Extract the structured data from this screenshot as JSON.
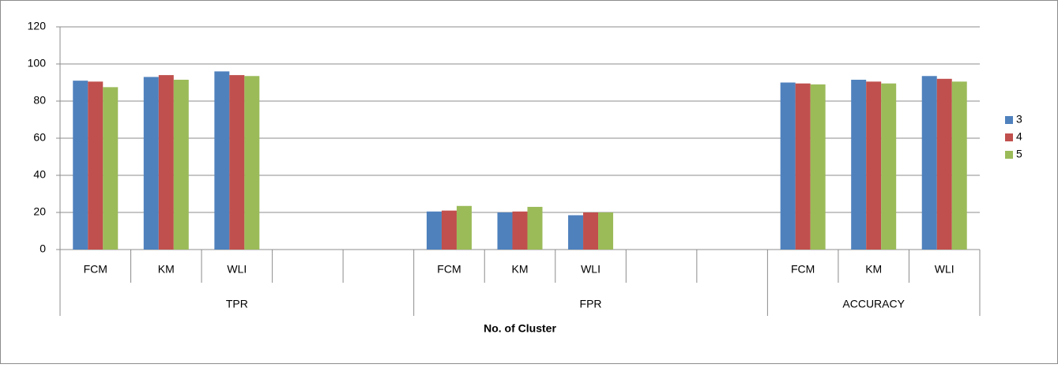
{
  "chart_data": {
    "type": "bar",
    "x_label": "No. of Cluster",
    "categories": [
      "FCM",
      "KM",
      "WLI",
      null,
      null,
      "FCM",
      "KM",
      "WLI",
      null,
      null,
      "FCM",
      "KM",
      "WLI"
    ],
    "groups": [
      {
        "label": "TPR",
        "count": 5
      },
      {
        "label": "FPR",
        "count": 5
      },
      {
        "label": "ACCURACY",
        "count": 3
      }
    ],
    "series": [
      {
        "name": "3",
        "color": "#4f81bd",
        "values": [
          91,
          93,
          96,
          null,
          null,
          20.5,
          20,
          18.5,
          null,
          null,
          90,
          91.5,
          93.5
        ]
      },
      {
        "name": "4",
        "color": "#c0504d",
        "values": [
          90.5,
          94,
          94,
          null,
          null,
          21,
          20.5,
          20,
          null,
          null,
          89.5,
          90.5,
          92
        ]
      },
      {
        "name": "5",
        "color": "#9bbb59",
        "values": [
          87.5,
          91.5,
          93.5,
          null,
          null,
          23.5,
          23,
          20,
          null,
          null,
          89,
          89.5,
          90.5
        ]
      }
    ],
    "ylim": [
      0,
      120
    ],
    "yticks": [
      0,
      20,
      40,
      60,
      80,
      100,
      120
    ],
    "grid": true,
    "legend": "right"
  }
}
